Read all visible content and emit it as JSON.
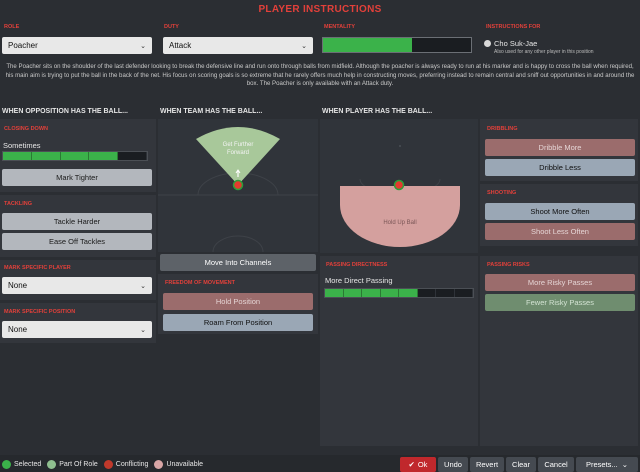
{
  "header": {
    "title": "PLAYER INSTRUCTIONS"
  },
  "top": {
    "role_label": "ROLE",
    "role_value": "Poacher",
    "duty_label": "DUTY",
    "duty_value": "Attack",
    "mentality_label": "MENTALITY",
    "mentality_level": 0.6,
    "instructions_for_label": "INSTRUCTIONS FOR",
    "player_name": "Cho Suk-Jae",
    "also_used": "Also used for any other player in this position"
  },
  "description": "The Poacher sits on the shoulder of the last defender looking to break the defensive line and run onto through balls from midfield. Although the poacher is always ready to run at his marker and is happy to cross the ball when required, his main aim is trying to put the ball in the back of the net. His focus on scoring goals is so extreme that he rarely offers much help in constructing moves, preferring instead to remain central and sniff out opportunities in and around the box. The Poacher is only available with an Attack duty.",
  "sections": {
    "opp_ball": "WHEN OPPOSITION HAS THE BALL...",
    "team_ball": "WHEN TEAM HAS THE BALL...",
    "player_ball": "WHEN PLAYER HAS THE BALL..."
  },
  "closing_down": {
    "label": "CLOSING DOWN",
    "value": "Sometimes",
    "segments_filled": 4,
    "segments_total": 5,
    "button": "Mark Tighter"
  },
  "tackling": {
    "label": "TACKLING",
    "btn1": "Tackle Harder",
    "btn2": "Ease Off Tackles"
  },
  "mark_player": {
    "label": "MARK SPECIFIC PLAYER",
    "value": "None"
  },
  "mark_position": {
    "label": "MARK SPECIFIC POSITION",
    "value": "None"
  },
  "team_pitch": {
    "zone_label": "Get Further Forward",
    "button": "Move Into Channels"
  },
  "freedom": {
    "label": "FREEDOM OF MOVEMENT",
    "btn1": "Hold Position",
    "btn2": "Roam From Position"
  },
  "player_pitch": {
    "zone_label": "Hold Up Ball"
  },
  "passing_directness": {
    "label": "PASSING DIRECTNESS",
    "value": "More Direct Passing",
    "segments_filled": 5,
    "segments_total": 8
  },
  "dribbling": {
    "label": "DRIBBLING",
    "btn1": "Dribble More",
    "btn2": "Dribble Less"
  },
  "shooting": {
    "label": "SHOOTING",
    "btn1": "Shoot More Often",
    "btn2": "Shoot Less Often"
  },
  "passing_risks": {
    "label": "PASSING RISKS",
    "btn1": "More Risky Passes",
    "btn2": "Fewer Risky Passes"
  },
  "legend": {
    "selected": "Selected",
    "part_of_role": "Part Of Role",
    "conflicting": "Conflicting",
    "unavailable": "Unavailable"
  },
  "footer": {
    "ok": "Ok",
    "undo": "Undo",
    "revert": "Revert",
    "clear": "Clear",
    "cancel": "Cancel",
    "presets": "Presets..."
  },
  "colors": {
    "accent_red": "#e2403a",
    "selected": "#3bb24a",
    "part_of_role": "#8fbf8f",
    "conflicting": "#c0392b",
    "unavailable": "#d8a6a6"
  }
}
